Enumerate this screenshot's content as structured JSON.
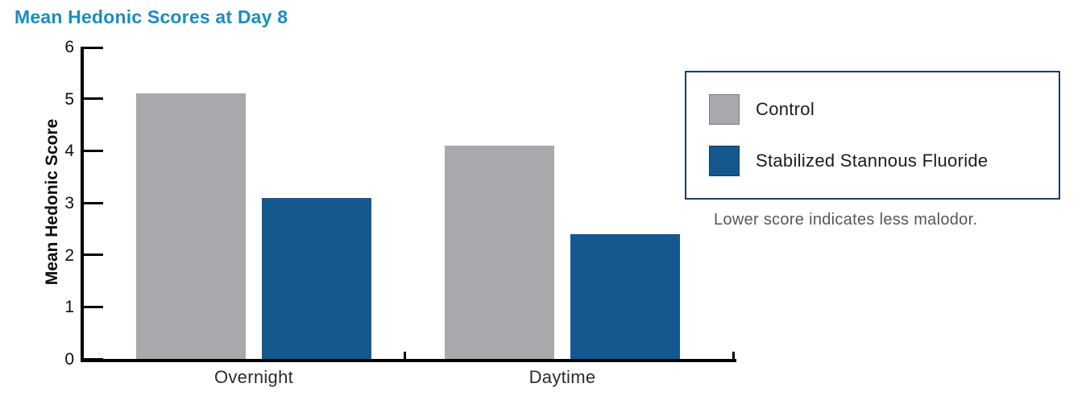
{
  "title": "Mean Hedonic Scores at Day 8",
  "chart_data": {
    "type": "bar",
    "title": "Mean Hedonic Scores at Day 8",
    "categories": [
      "Overnight",
      "Daytime"
    ],
    "series": [
      {
        "name": "Control",
        "color": "#A7A9AC",
        "values": [
          5.1,
          4.1
        ]
      },
      {
        "name": "Stabilized Stannous Fluoride",
        "color": "#15578F",
        "values": [
          3.1,
          2.4
        ]
      }
    ],
    "xlabel": "",
    "ylabel": "Mean Hedonic Score",
    "ylim": [
      0,
      6
    ],
    "yticks": [
      0,
      1,
      2,
      3,
      4,
      5,
      6
    ],
    "grid": false,
    "legend_position": "right",
    "annotation": "Lower score indicates less malodor."
  },
  "legend": {
    "items": [
      {
        "label": "Control",
        "color": "#A7A9AC"
      },
      {
        "label": "Stabilized Stannous Fluoride",
        "color": "#15578F"
      }
    ],
    "note": "Lower score indicates less malodor."
  },
  "colors": {
    "title": "#1B8DC0",
    "axis": "#000000",
    "bar_control": "#A7A9AC",
    "bar_stannous": "#15578F",
    "note_text": "#55575A"
  }
}
